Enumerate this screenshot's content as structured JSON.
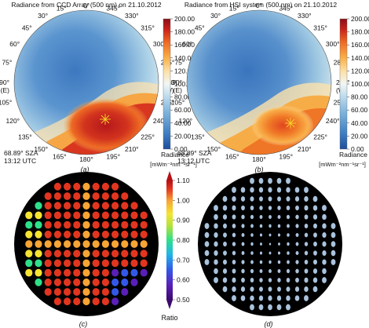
{
  "panels": {
    "a": {
      "title": "Radiance from CCD Array (500 nm) on 21.10.2012",
      "tag": "(a)",
      "sza": "68.89° SZA",
      "time": "13:12  UTC",
      "cbar_title": "Radiance",
      "cbar_unit": "[mWm⁻²nm⁻¹sr⁻¹]"
    },
    "b": {
      "title": "Radiance from HSI system (500 nm) on 21.10.2012",
      "tag": "(b)",
      "sza": "68.89° SZA",
      "time": "13:12  UTC",
      "cbar_title": "Radiance",
      "cbar_unit": "[mWm⁻²nm⁻¹sr⁻¹]"
    },
    "c": {
      "tag": "(c)",
      "cbar_title": "Ratio"
    },
    "d": {
      "tag": "(d)"
    }
  },
  "azimuth_labels": [
    {
      "text": "0°",
      "az": 0
    },
    {
      "text": "15°",
      "az": 15
    },
    {
      "text": "345°",
      "az": 345
    },
    {
      "text": "30°",
      "az": 30
    },
    {
      "text": "330°",
      "az": 330
    },
    {
      "text": "45°",
      "az": 45
    },
    {
      "text": "315°",
      "az": 315
    },
    {
      "text": "60°",
      "az": 60
    },
    {
      "text": "300°",
      "az": 300
    },
    {
      "text": "75°",
      "az": 75
    },
    {
      "text": "285°",
      "az": 285
    },
    {
      "text": "90°",
      "az": 90
    },
    {
      "text": "(E)",
      "az": 90,
      "sub": true
    },
    {
      "text": "270°",
      "az": 270
    },
    {
      "text": "(W)",
      "az": 270,
      "sub": true
    },
    {
      "text": "105°",
      "az": 105
    },
    {
      "text": "255°",
      "az": 255
    },
    {
      "text": "120°",
      "az": 120
    },
    {
      "text": "240°",
      "az": 240
    },
    {
      "text": "135°",
      "az": 135
    },
    {
      "text": "225°",
      "az": 225
    },
    {
      "text": "150°",
      "az": 150
    },
    {
      "text": "210°",
      "az": 210
    },
    {
      "text": "165°",
      "az": 165
    },
    {
      "text": "195°",
      "az": 195
    },
    {
      "text": "180°",
      "az": 180
    }
  ],
  "chart_data": [
    {
      "type": "heatmap",
      "panel": "a",
      "title": "Radiance from CCD Array (500 nm) on 21.10.2012",
      "colorbar": {
        "label": "Radiance",
        "unit": "[mWm⁻²nm⁻¹sr⁻¹]",
        "range": [
          0,
          200
        ],
        "ticks": [
          0,
          20,
          40,
          60,
          80,
          100,
          120,
          140,
          160,
          180,
          200
        ]
      },
      "sun": {
        "azimuth": 238,
        "sza": 68.89
      },
      "approx_radiance": {
        "zenith": 55,
        "sun_region": 190
      }
    },
    {
      "type": "heatmap",
      "panel": "b",
      "title": "Radiance from HSI system (500 nm) on 21.10.2012",
      "colorbar": {
        "label": "Radiance",
        "unit": "[mWm⁻²nm⁻¹sr⁻¹]",
        "range": [
          0,
          200
        ],
        "ticks": [
          0,
          20,
          40,
          60,
          80,
          100,
          120,
          140,
          160,
          180,
          200
        ]
      },
      "sun": {
        "azimuth": 238,
        "sza": 68.89
      },
      "approx_radiance": {
        "zenith": 50,
        "sun_region": 170
      }
    },
    {
      "type": "heatmap",
      "panel": "c",
      "colorbar": {
        "label": "Ratio",
        "range": [
          0.5,
          1.1
        ],
        "ticks": [
          0.5,
          0.6,
          0.7,
          0.8,
          0.9,
          1.0,
          1.1
        ]
      },
      "approx_ratio": {
        "cross_arms": 0.95,
        "background": 1.02,
        "left_edge": 0.78,
        "lower_right": 0.6
      }
    },
    {
      "type": "scatter",
      "panel": "d",
      "description_color": "#a9c3dd"
    }
  ],
  "colors": {
    "radiance_scale": [
      "#1b4d9c",
      "#3f7ec2",
      "#7db3dc",
      "#c6e0ef",
      "#f2f6f4",
      "#fde0a5",
      "#f9b04a",
      "#ee6a24",
      "#c9211b",
      "#8a0f17"
    ],
    "ratio_scale": [
      "#3b0a6e",
      "#5a1fb8",
      "#3358e8",
      "#21b5e8",
      "#2ee08a",
      "#b4e23a",
      "#f5e431",
      "#f7a534",
      "#e2351f",
      "#b51015"
    ]
  }
}
